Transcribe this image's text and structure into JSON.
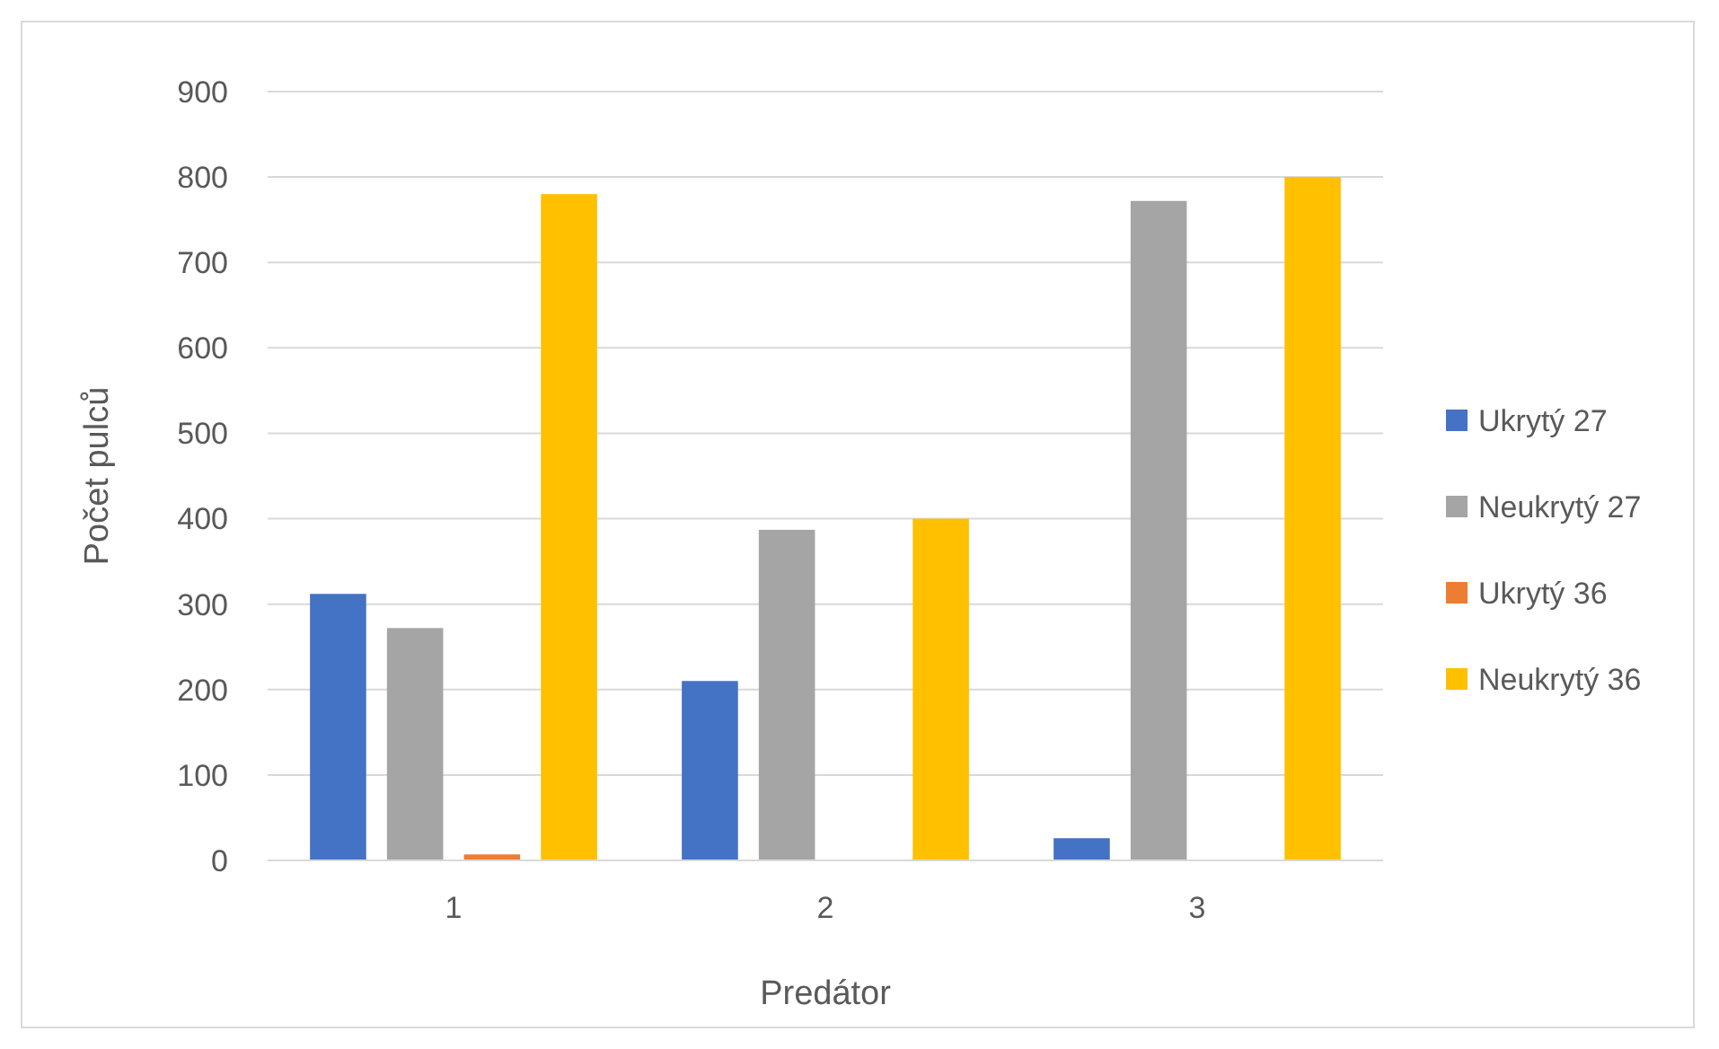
{
  "chart_data": {
    "type": "bar",
    "xlabel": "Predátor",
    "ylabel": "Počet pulců",
    "categories": [
      "1",
      "2",
      "3"
    ],
    "series": [
      {
        "name": "Ukrytý 27",
        "color": "#4472c4",
        "values": [
          312,
          210,
          26
        ]
      },
      {
        "name": "Neukrytý 27",
        "color": "#a5a5a5",
        "values": [
          272,
          387,
          772
        ]
      },
      {
        "name": "Ukrytý 36",
        "color": "#ed7d31",
        "values": [
          7,
          0,
          0
        ]
      },
      {
        "name": "Neukrytý 36",
        "color": "#ffc000",
        "values": [
          780,
          400,
          800
        ]
      }
    ],
    "ylim": [
      0,
      900
    ],
    "yticks": [
      0,
      100,
      200,
      300,
      400,
      500,
      600,
      700,
      800,
      900
    ],
    "grid": "y",
    "legend": "right"
  }
}
